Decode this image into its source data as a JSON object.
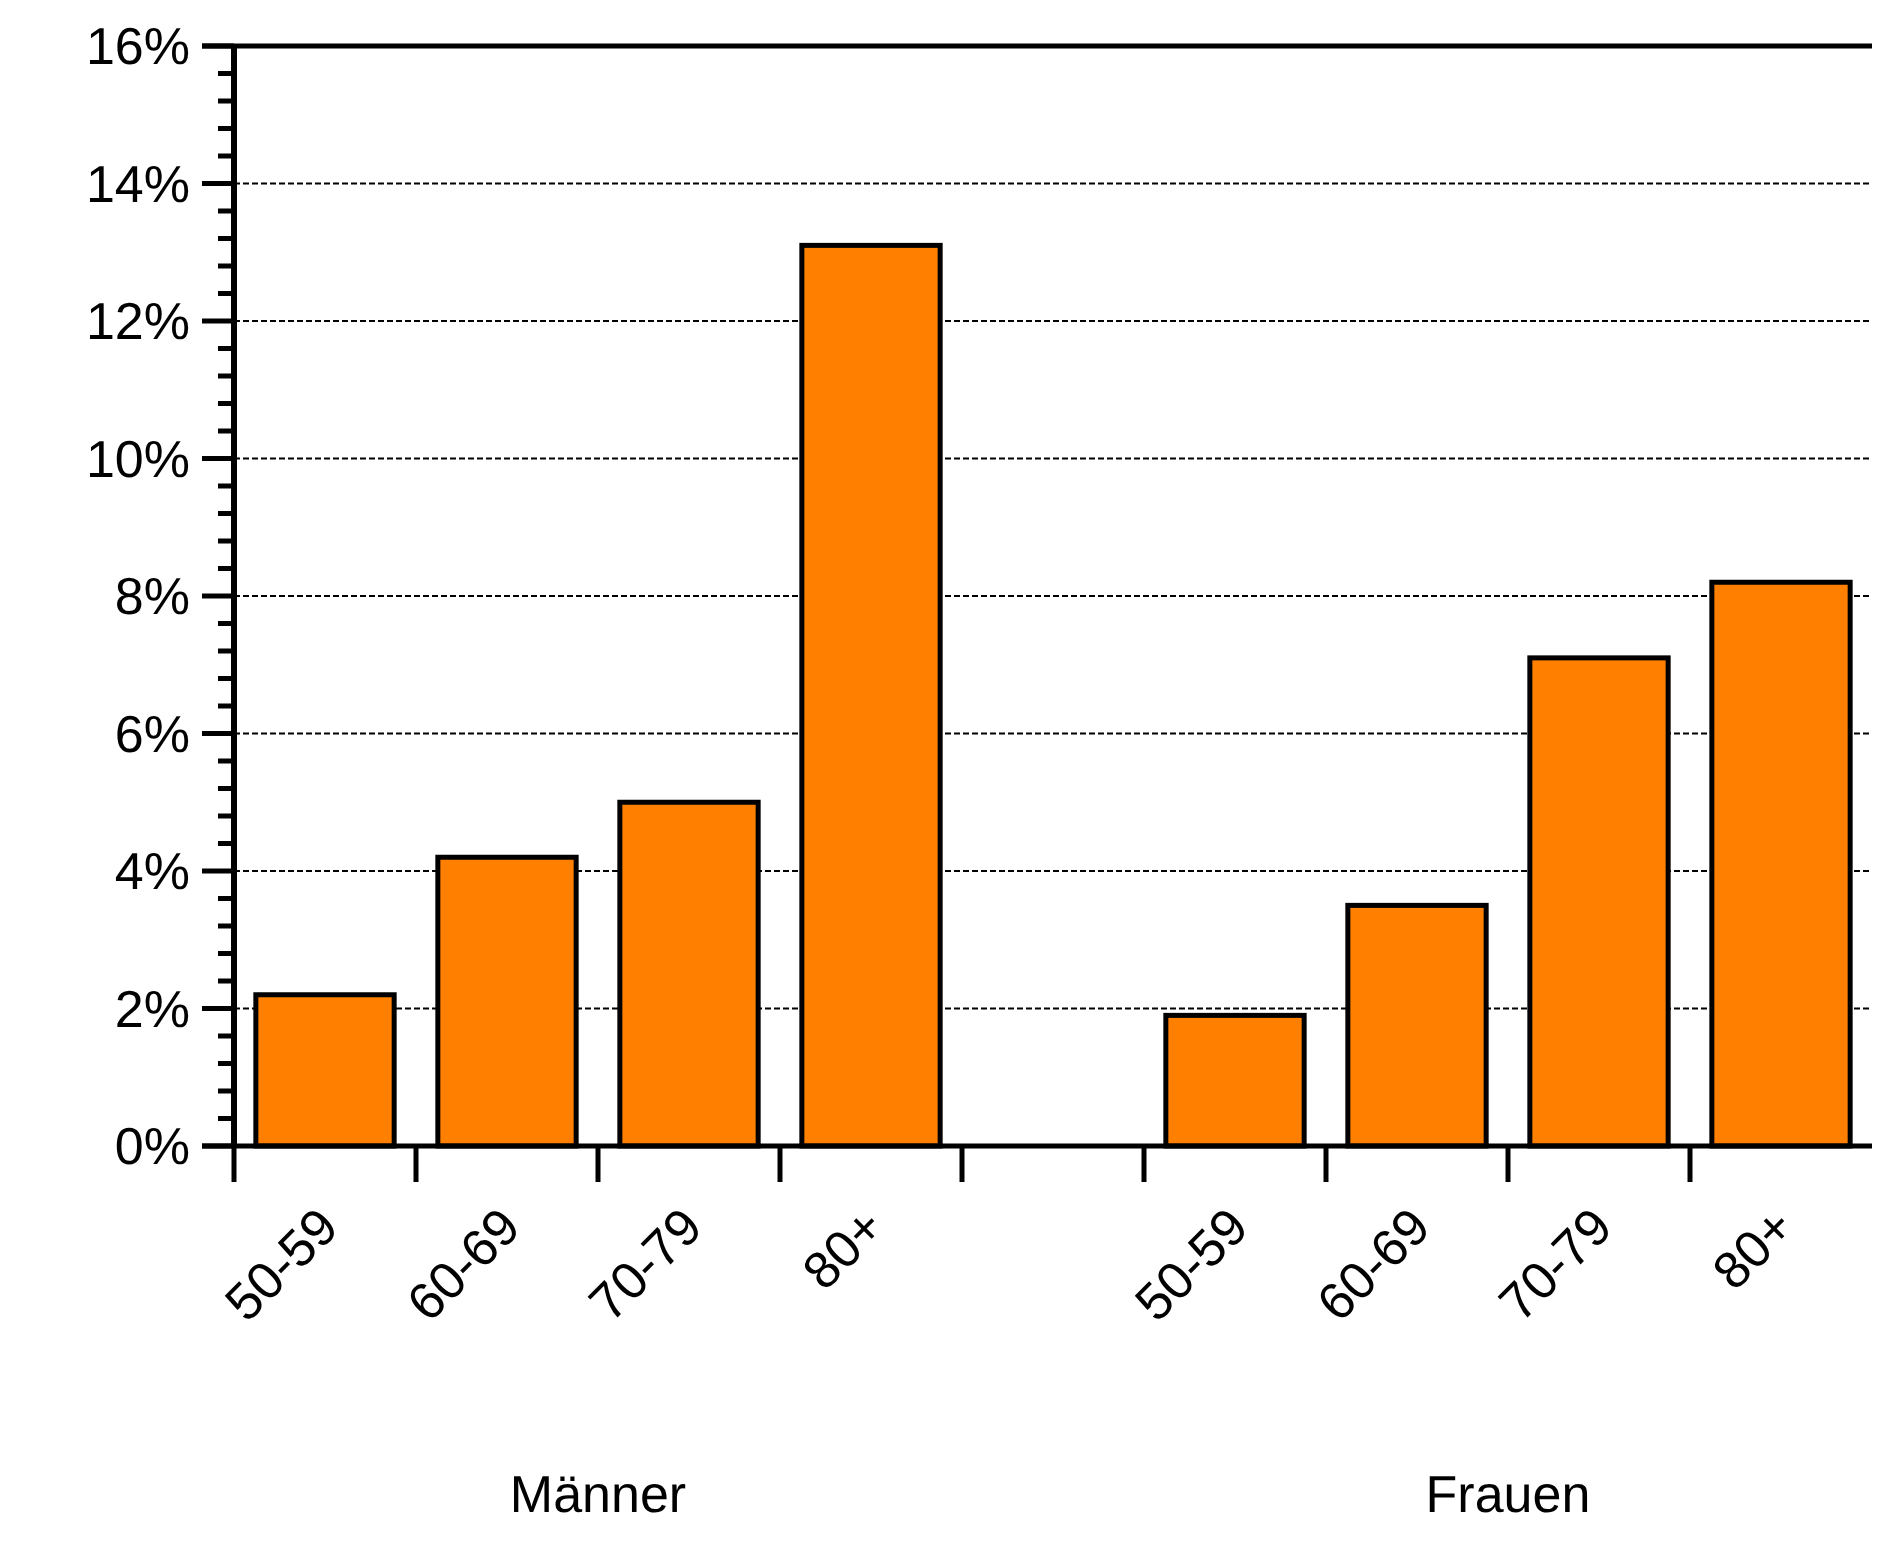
{
  "chart_data": {
    "type": "bar",
    "categories": [
      "50-59",
      "60-69",
      "70-79",
      "80+",
      null,
      "50-59",
      "60-69",
      "70-79",
      "80+"
    ],
    "values": [
      2.2,
      4.2,
      5.0,
      13.1,
      null,
      1.9,
      3.5,
      7.1,
      8.2
    ],
    "color": "#ff8000",
    "ylim": [
      0,
      16
    ],
    "yticks": [
      {
        "value": 0,
        "label": "0%"
      },
      {
        "value": 0.4,
        "label": null
      },
      {
        "value": 0.8,
        "label": null
      },
      {
        "value": 1.2,
        "label": null
      },
      {
        "value": 1.6,
        "label": null
      },
      {
        "value": 2,
        "label": "2%"
      },
      {
        "value": 2.4,
        "label": null
      },
      {
        "value": 2.8,
        "label": null
      },
      {
        "value": 3.2,
        "label": null
      },
      {
        "value": 3.6,
        "label": null
      },
      {
        "value": 4,
        "label": "4%"
      },
      {
        "value": 4.4,
        "label": null
      },
      {
        "value": 4.8,
        "label": null
      },
      {
        "value": 5.2,
        "label": null
      },
      {
        "value": 5.6,
        "label": null
      },
      {
        "value": 6,
        "label": "6%"
      },
      {
        "value": 6.4,
        "label": null
      },
      {
        "value": 6.8,
        "label": null
      },
      {
        "value": 7.2,
        "label": null
      },
      {
        "value": 7.6,
        "label": null
      },
      {
        "value": 8,
        "label": "8%"
      },
      {
        "value": 8.4,
        "label": null
      },
      {
        "value": 8.8,
        "label": null
      },
      {
        "value": 9.2,
        "label": null
      },
      {
        "value": 9.6,
        "label": null
      },
      {
        "value": 10,
        "label": "10%"
      },
      {
        "value": 10.4,
        "label": null
      },
      {
        "value": 10.8,
        "label": null
      },
      {
        "value": 11.2,
        "label": null
      },
      {
        "value": 11.6,
        "label": null
      },
      {
        "value": 12,
        "label": "12%"
      },
      {
        "value": 12.4,
        "label": null
      },
      {
        "value": 12.8,
        "label": null
      },
      {
        "value": 13.2,
        "label": null
      },
      {
        "value": 13.6,
        "label": null
      },
      {
        "value": 14,
        "label": "14%"
      },
      {
        "value": 14.4,
        "label": null
      },
      {
        "value": 14.8,
        "label": null
      },
      {
        "value": 15.2,
        "label": null
      },
      {
        "value": 15.6,
        "label": null
      },
      {
        "value": 16,
        "label": "16%"
      }
    ],
    "grid": "y",
    "annotations": [
      "Männer",
      "Frauen"
    ]
  }
}
